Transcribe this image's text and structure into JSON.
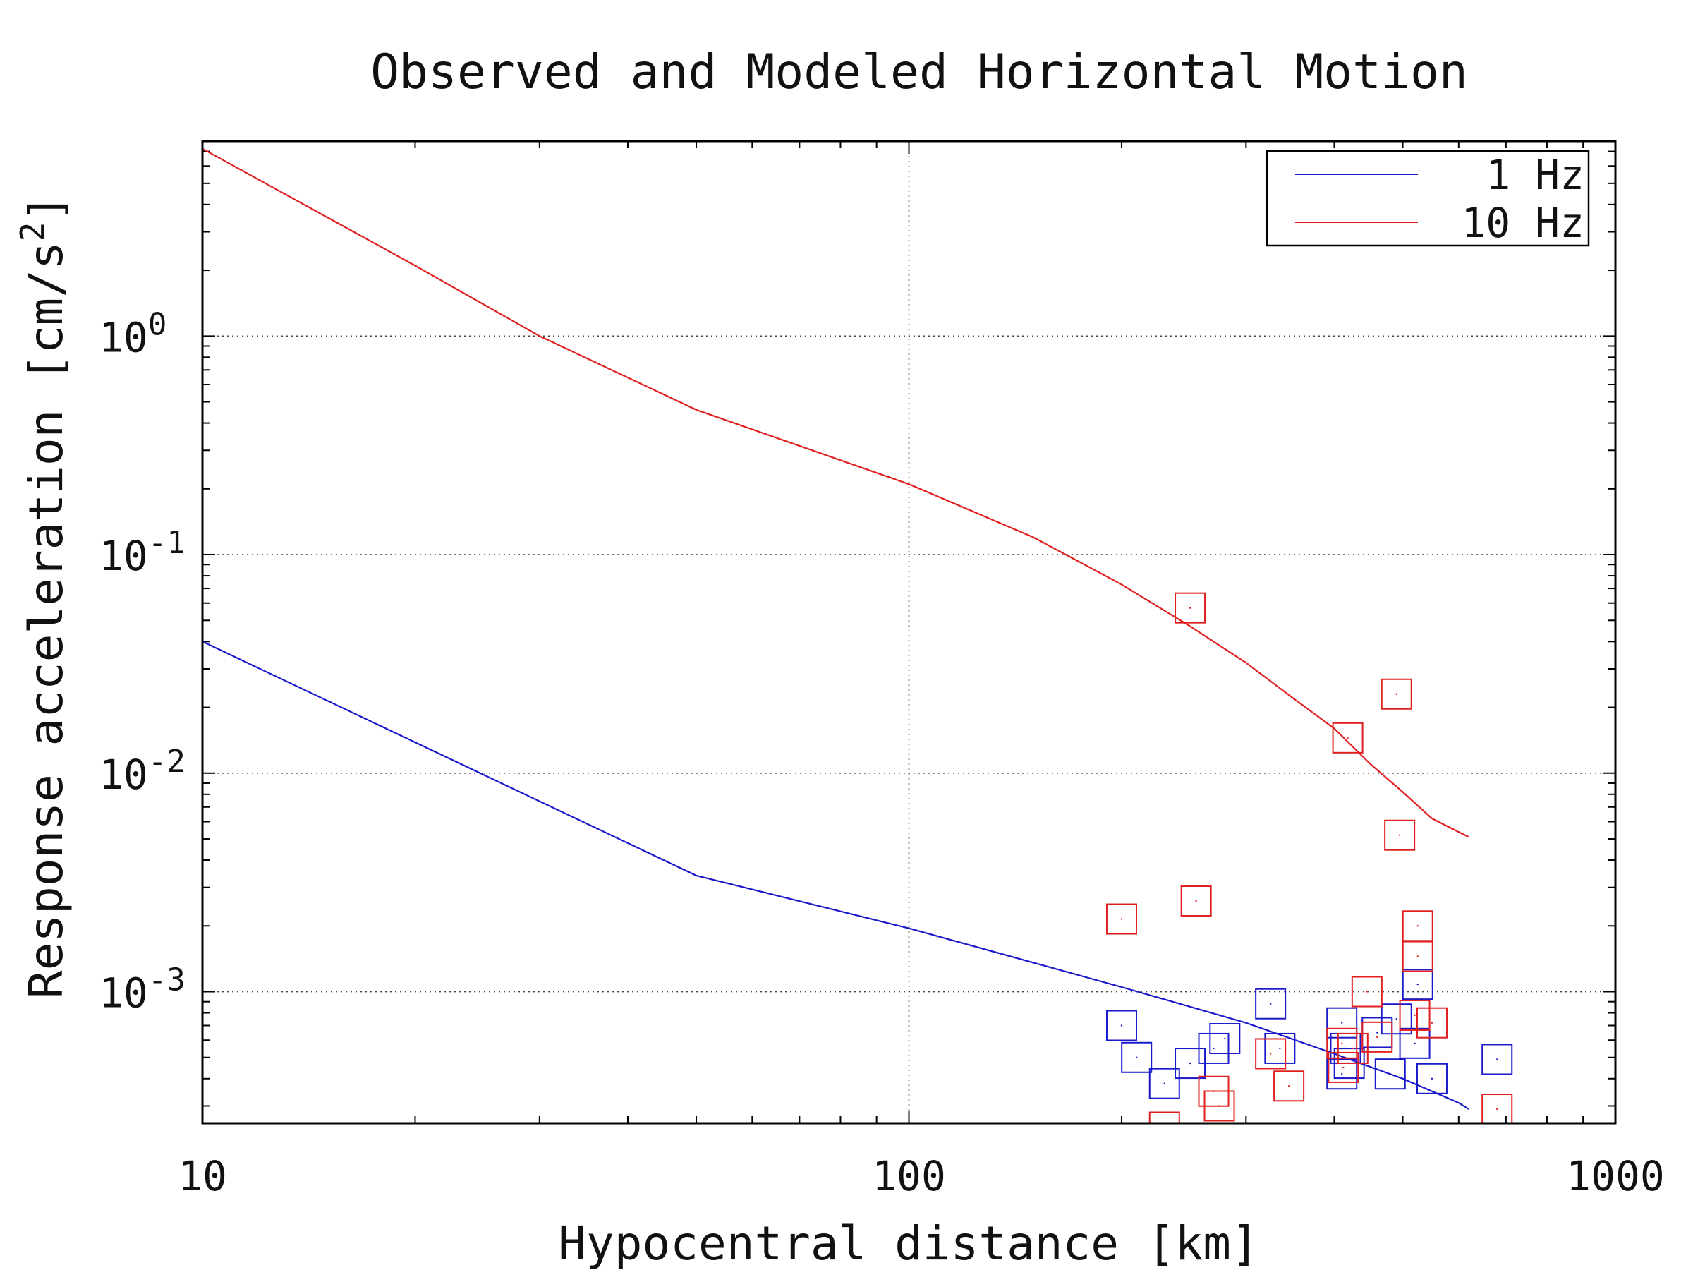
{
  "chart_data": {
    "type": "line",
    "title": "Observed and Modeled Horizontal Motion",
    "xlabel": "Hypocentral distance [km]",
    "ylabel": "Response acceleration [cm/s",
    "ylabel_sup": "2",
    "ylabel_close": "]",
    "x_scale": "log",
    "y_scale": "log",
    "xlim": [
      10,
      1000
    ],
    "ylim": [
      0.00025,
      7.8
    ],
    "x_ticks": [
      {
        "value": 10,
        "label": "10"
      },
      {
        "value": 100,
        "label": "100"
      },
      {
        "value": 1000,
        "label": "1000"
      }
    ],
    "y_ticks": [
      {
        "value": 1,
        "base": "10",
        "exp": "0"
      },
      {
        "value": 0.1,
        "base": "10",
        "exp": "-1"
      },
      {
        "value": 0.01,
        "base": "10",
        "exp": "-2"
      },
      {
        "value": 0.001,
        "base": "10",
        "exp": "-3"
      }
    ],
    "grid": true,
    "legend_position": "top-right",
    "series": [
      {
        "name": "1 Hz",
        "color": "#1a1acc",
        "line_x": [
          10,
          50,
          100,
          200,
          300,
          400,
          500,
          600,
          620
        ],
        "line_y": [
          0.04,
          0.0034,
          0.00195,
          0.00105,
          0.00072,
          0.00052,
          0.0004,
          0.00031,
          0.00029
        ],
        "points_x": [
          200,
          210,
          230,
          250,
          270,
          280,
          325,
          335,
          410,
          410,
          415,
          420,
          460,
          480,
          490,
          520,
          525,
          550,
          680
        ],
        "points_y": [
          0.0007,
          0.0005,
          0.00038,
          0.00047,
          0.00055,
          0.00061,
          0.00088,
          0.00055,
          0.00072,
          0.00042,
          0.00055,
          0.00047,
          0.00065,
          0.00042,
          0.00075,
          0.00058,
          0.00108,
          0.0004,
          0.00049
        ]
      },
      {
        "name": "10 Hz",
        "color": "#e02020",
        "line_x": [
          10,
          20,
          30,
          50,
          100,
          150,
          200,
          250,
          300,
          350,
          400,
          450,
          500,
          550,
          620
        ],
        "line_y": [
          7.2,
          2.1,
          1.0,
          0.46,
          0.21,
          0.12,
          0.073,
          0.047,
          0.032,
          0.022,
          0.016,
          0.011,
          0.0082,
          0.0062,
          0.0051
        ],
        "points_x": [
          200,
          230,
          250,
          255,
          270,
          275,
          325,
          345,
          410,
          412,
          418,
          425,
          445,
          460,
          490,
          495,
          520,
          525,
          525,
          550,
          680
        ],
        "points_y": [
          0.00215,
          0.00024,
          0.057,
          0.0026,
          0.00035,
          0.0003,
          0.00052,
          0.00037,
          0.00058,
          0.00045,
          0.0145,
          0.00055,
          0.001,
          0.00062,
          0.023,
          0.0052,
          0.00078,
          0.002,
          0.00145,
          0.00072,
          0.00029
        ]
      }
    ]
  }
}
